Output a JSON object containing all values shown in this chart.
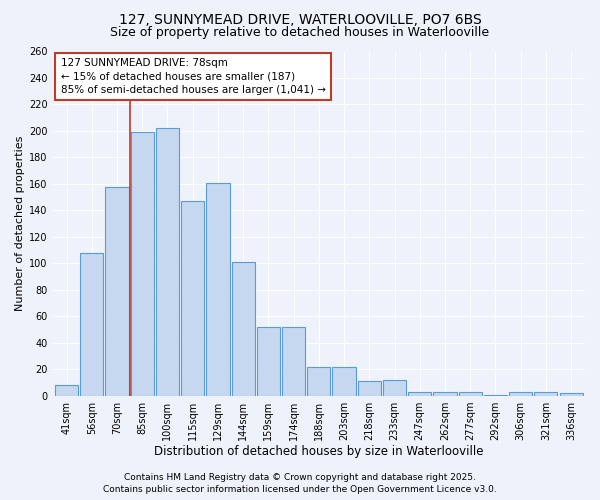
{
  "title": "127, SUNNYMEAD DRIVE, WATERLOOVILLE, PO7 6BS",
  "subtitle": "Size of property relative to detached houses in Waterlooville",
  "xlabel": "Distribution of detached houses by size in Waterlooville",
  "ylabel": "Number of detached properties",
  "categories": [
    "41sqm",
    "56sqm",
    "70sqm",
    "85sqm",
    "100sqm",
    "115sqm",
    "129sqm",
    "144sqm",
    "159sqm",
    "174sqm",
    "188sqm",
    "203sqm",
    "218sqm",
    "233sqm",
    "247sqm",
    "262sqm",
    "277sqm",
    "292sqm",
    "306sqm",
    "321sqm",
    "336sqm"
  ],
  "values": [
    8,
    108,
    158,
    199,
    202,
    147,
    161,
    101,
    52,
    52,
    22,
    22,
    11,
    12,
    3,
    3,
    3,
    1,
    3,
    3,
    2
  ],
  "bar_color": "#c5d8f0",
  "bar_edge_color": "#5b9bd5",
  "bar_linewidth": 0.8,
  "vline_x": 2.5,
  "vline_color": "#c0392b",
  "annotation_text": "127 SUNNYMEAD DRIVE: 78sqm\n← 15% of detached houses are smaller (187)\n85% of semi-detached houses are larger (1,041) →",
  "annotation_box_color": "white",
  "annotation_box_edgecolor": "#c0392b",
  "ylim": [
    0,
    260
  ],
  "yticks": [
    0,
    20,
    40,
    60,
    80,
    100,
    120,
    140,
    160,
    180,
    200,
    220,
    240,
    260
  ],
  "background_color": "#eef2fa",
  "grid_color": "#ffffff",
  "footer_line1": "Contains HM Land Registry data © Crown copyright and database right 2025.",
  "footer_line2": "Contains public sector information licensed under the Open Government Licence v3.0.",
  "title_fontsize": 10,
  "subtitle_fontsize": 9,
  "xlabel_fontsize": 8.5,
  "ylabel_fontsize": 8,
  "tick_fontsize": 7,
  "footer_fontsize": 6.5,
  "annotation_fontsize": 7.5
}
